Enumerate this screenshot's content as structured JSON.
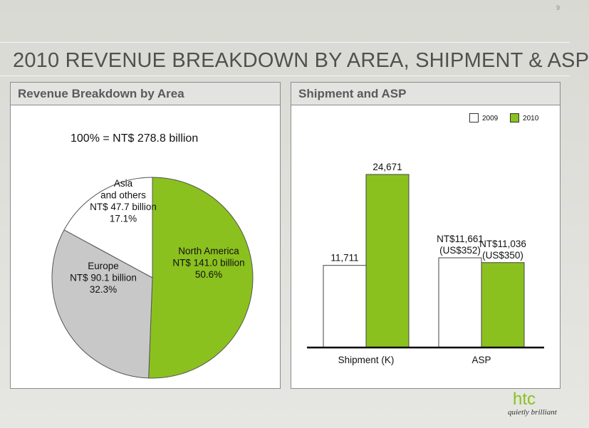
{
  "page_number": "9",
  "title": "2010 REVENUE BREAKDOWN BY AREA, SHIPMENT & ASP",
  "left_panel": {
    "header": "Revenue Breakdown by Area",
    "total_label": "100% = NT$ 278.8 billion"
  },
  "right_panel": {
    "header": "Shipment and ASP",
    "legend": [
      "2009",
      "2010"
    ]
  },
  "logo": {
    "word": "htc",
    "tagline": "quietly brilliant"
  },
  "colors": {
    "green": "#8bc11e",
    "gray": "#c8c8c8",
    "white": "#ffffff",
    "title": "#505050"
  },
  "chart_data": [
    {
      "type": "pie",
      "title": "Revenue Breakdown by Area",
      "total": "100% = NT$ 278.8 billion",
      "slices": [
        {
          "lines": [
            "North America",
            "NT$ 141.0 billion",
            "50.6%"
          ],
          "value": 50.6,
          "amount": 141.0,
          "color": "#8bc11e"
        },
        {
          "lines": [
            "Europe",
            "NT$ 90.1 billion",
            "32.3%"
          ],
          "value": 32.3,
          "amount": 90.1,
          "color": "#c8c8c8"
        },
        {
          "lines": [
            "Asia",
            "and others",
            "NT$ 47.7 billion",
            "17.1%"
          ],
          "value": 17.1,
          "amount": 47.7,
          "color": "#ffffff"
        }
      ]
    },
    {
      "type": "bar",
      "title": "Shipment and ASP",
      "categories": [
        "Shipment (K)",
        "ASP"
      ],
      "series": [
        {
          "name": "2009",
          "color": "#ffffff",
          "values": [
            11711,
            11661
          ],
          "labels": [
            [
              "11,711"
            ],
            [
              "NT$11,661",
              "(US$352)"
            ]
          ]
        },
        {
          "name": "2010",
          "color": "#8bc11e",
          "values": [
            24671,
            11036
          ],
          "labels": [
            [
              "24,671"
            ],
            [
              "NT$11,036",
              "(US$350)"
            ]
          ]
        }
      ],
      "legend_position": "top-right"
    }
  ]
}
